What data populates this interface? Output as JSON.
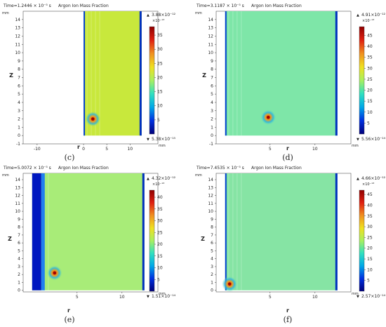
{
  "chart_data": [
    {
      "type": "heatmap",
      "panel": "c",
      "caption": "(c)",
      "header_time": "Time=1.2446 × 10⁻⁵ s",
      "title": "Argon Ion Mass Fraction",
      "xlabel": "r",
      "ylabel": "z",
      "unit": "mm",
      "xlim": [
        -13,
        16
      ],
      "ylim": [
        -1,
        15
      ],
      "x_ticks": [
        -10,
        0,
        5,
        10
      ],
      "y_ticks": [
        -1,
        0,
        1,
        2,
        3,
        4,
        5,
        6,
        7,
        8,
        9,
        10,
        11,
        12,
        13,
        14
      ],
      "domain_r": [
        0,
        12.5
      ],
      "domain_z": [
        0,
        15
      ],
      "field_color": "#c8e83c",
      "hot_spot": {
        "r": 2.0,
        "z": 2.0
      },
      "colorbar": {
        "max_label": "3.88×10⁻¹²",
        "scale_label": "×10⁻¹³",
        "min_label": "5.38×10⁻¹⁵",
        "ticks": [
          5,
          10,
          15,
          20,
          25,
          30,
          35
        ],
        "range": [
          0,
          38
        ]
      }
    },
    {
      "type": "heatmap",
      "panel": "d",
      "caption": "(d)",
      "header_time": "Time=3.1187 × 10⁻⁵ s",
      "title": "Argon Ion Mass Fraction",
      "xlabel": "r",
      "ylabel": "z",
      "unit": "mm",
      "xlim": [
        -1,
        14
      ],
      "ylim": [
        -1,
        15
      ],
      "x_ticks": [
        5,
        10
      ],
      "y_ticks": [
        -1,
        0,
        1,
        2,
        3,
        4,
        5,
        6,
        7,
        8,
        9,
        10,
        11,
        12,
        13,
        14
      ],
      "domain_r": [
        0,
        12.5
      ],
      "domain_z": [
        0,
        15
      ],
      "field_color": "#7ee6a8",
      "hot_spot": {
        "r": 4.8,
        "z": 2.2
      },
      "colorbar": {
        "max_label": "4.91×10⁻¹²",
        "scale_label": "×10⁻¹³",
        "min_label": "5.56×10⁻¹⁴",
        "ticks": [
          5,
          10,
          15,
          20,
          25,
          30,
          35,
          40,
          45
        ],
        "range": [
          0,
          49
        ]
      }
    },
    {
      "type": "heatmap",
      "panel": "e",
      "caption": "(e)",
      "header_time": "Time=5.0072 × 10⁻⁵ s",
      "title": "Argon Ion Mass Fraction",
      "xlabel": "r",
      "ylabel": "z",
      "unit": "mm",
      "xlim": [
        -1,
        14
      ],
      "ylim": [
        -0.2,
        14.8
      ],
      "x_ticks": [
        5,
        10
      ],
      "y_ticks": [
        0,
        1,
        2,
        3,
        4,
        5,
        6,
        7,
        8,
        9,
        10,
        11,
        12,
        13,
        14
      ],
      "domain_r": [
        0,
        12.5
      ],
      "domain_z": [
        0,
        15
      ],
      "field_color": "#a8ec78",
      "hot_spot": {
        "r": 2.5,
        "z": 2.2
      },
      "colorbar": {
        "max_label": "4.32×10⁻¹²",
        "scale_label": "×10⁻¹³",
        "min_label": "1.51×10⁻¹⁴",
        "ticks": [
          5,
          10,
          15,
          20,
          25,
          30,
          35,
          40
        ],
        "range": [
          0,
          43
        ]
      }
    },
    {
      "type": "heatmap",
      "panel": "f",
      "caption": "(f)",
      "header_time": "Time=7.4535 × 10⁻⁵ s",
      "title": "Argon Ion Mass Fraction",
      "xlabel": "r",
      "ylabel": "z",
      "unit": "mm",
      "xlim": [
        -1,
        14
      ],
      "ylim": [
        -0.2,
        14.8
      ],
      "x_ticks": [
        5,
        10
      ],
      "y_ticks": [
        0,
        1,
        2,
        3,
        4,
        5,
        6,
        7,
        8,
        9,
        10,
        11,
        12,
        13,
        14
      ],
      "domain_r": [
        0,
        12.5
      ],
      "domain_z": [
        0,
        15
      ],
      "field_color": "#86e4a4",
      "hot_spot": {
        "r": 0.5,
        "z": 0.8
      },
      "colorbar": {
        "max_label": "4.66×10⁻¹²",
        "scale_label": "×10⁻¹³",
        "min_label": "2.57×10⁻¹⁴",
        "ticks": [
          5,
          10,
          15,
          20,
          25,
          30,
          35,
          40,
          45
        ],
        "range": [
          0,
          47
        ]
      }
    }
  ],
  "colormap": [
    "#00007a",
    "#0030e0",
    "#00a8e8",
    "#30e0c0",
    "#a8f060",
    "#f0e020",
    "#f09020",
    "#e02010",
    "#900000"
  ]
}
